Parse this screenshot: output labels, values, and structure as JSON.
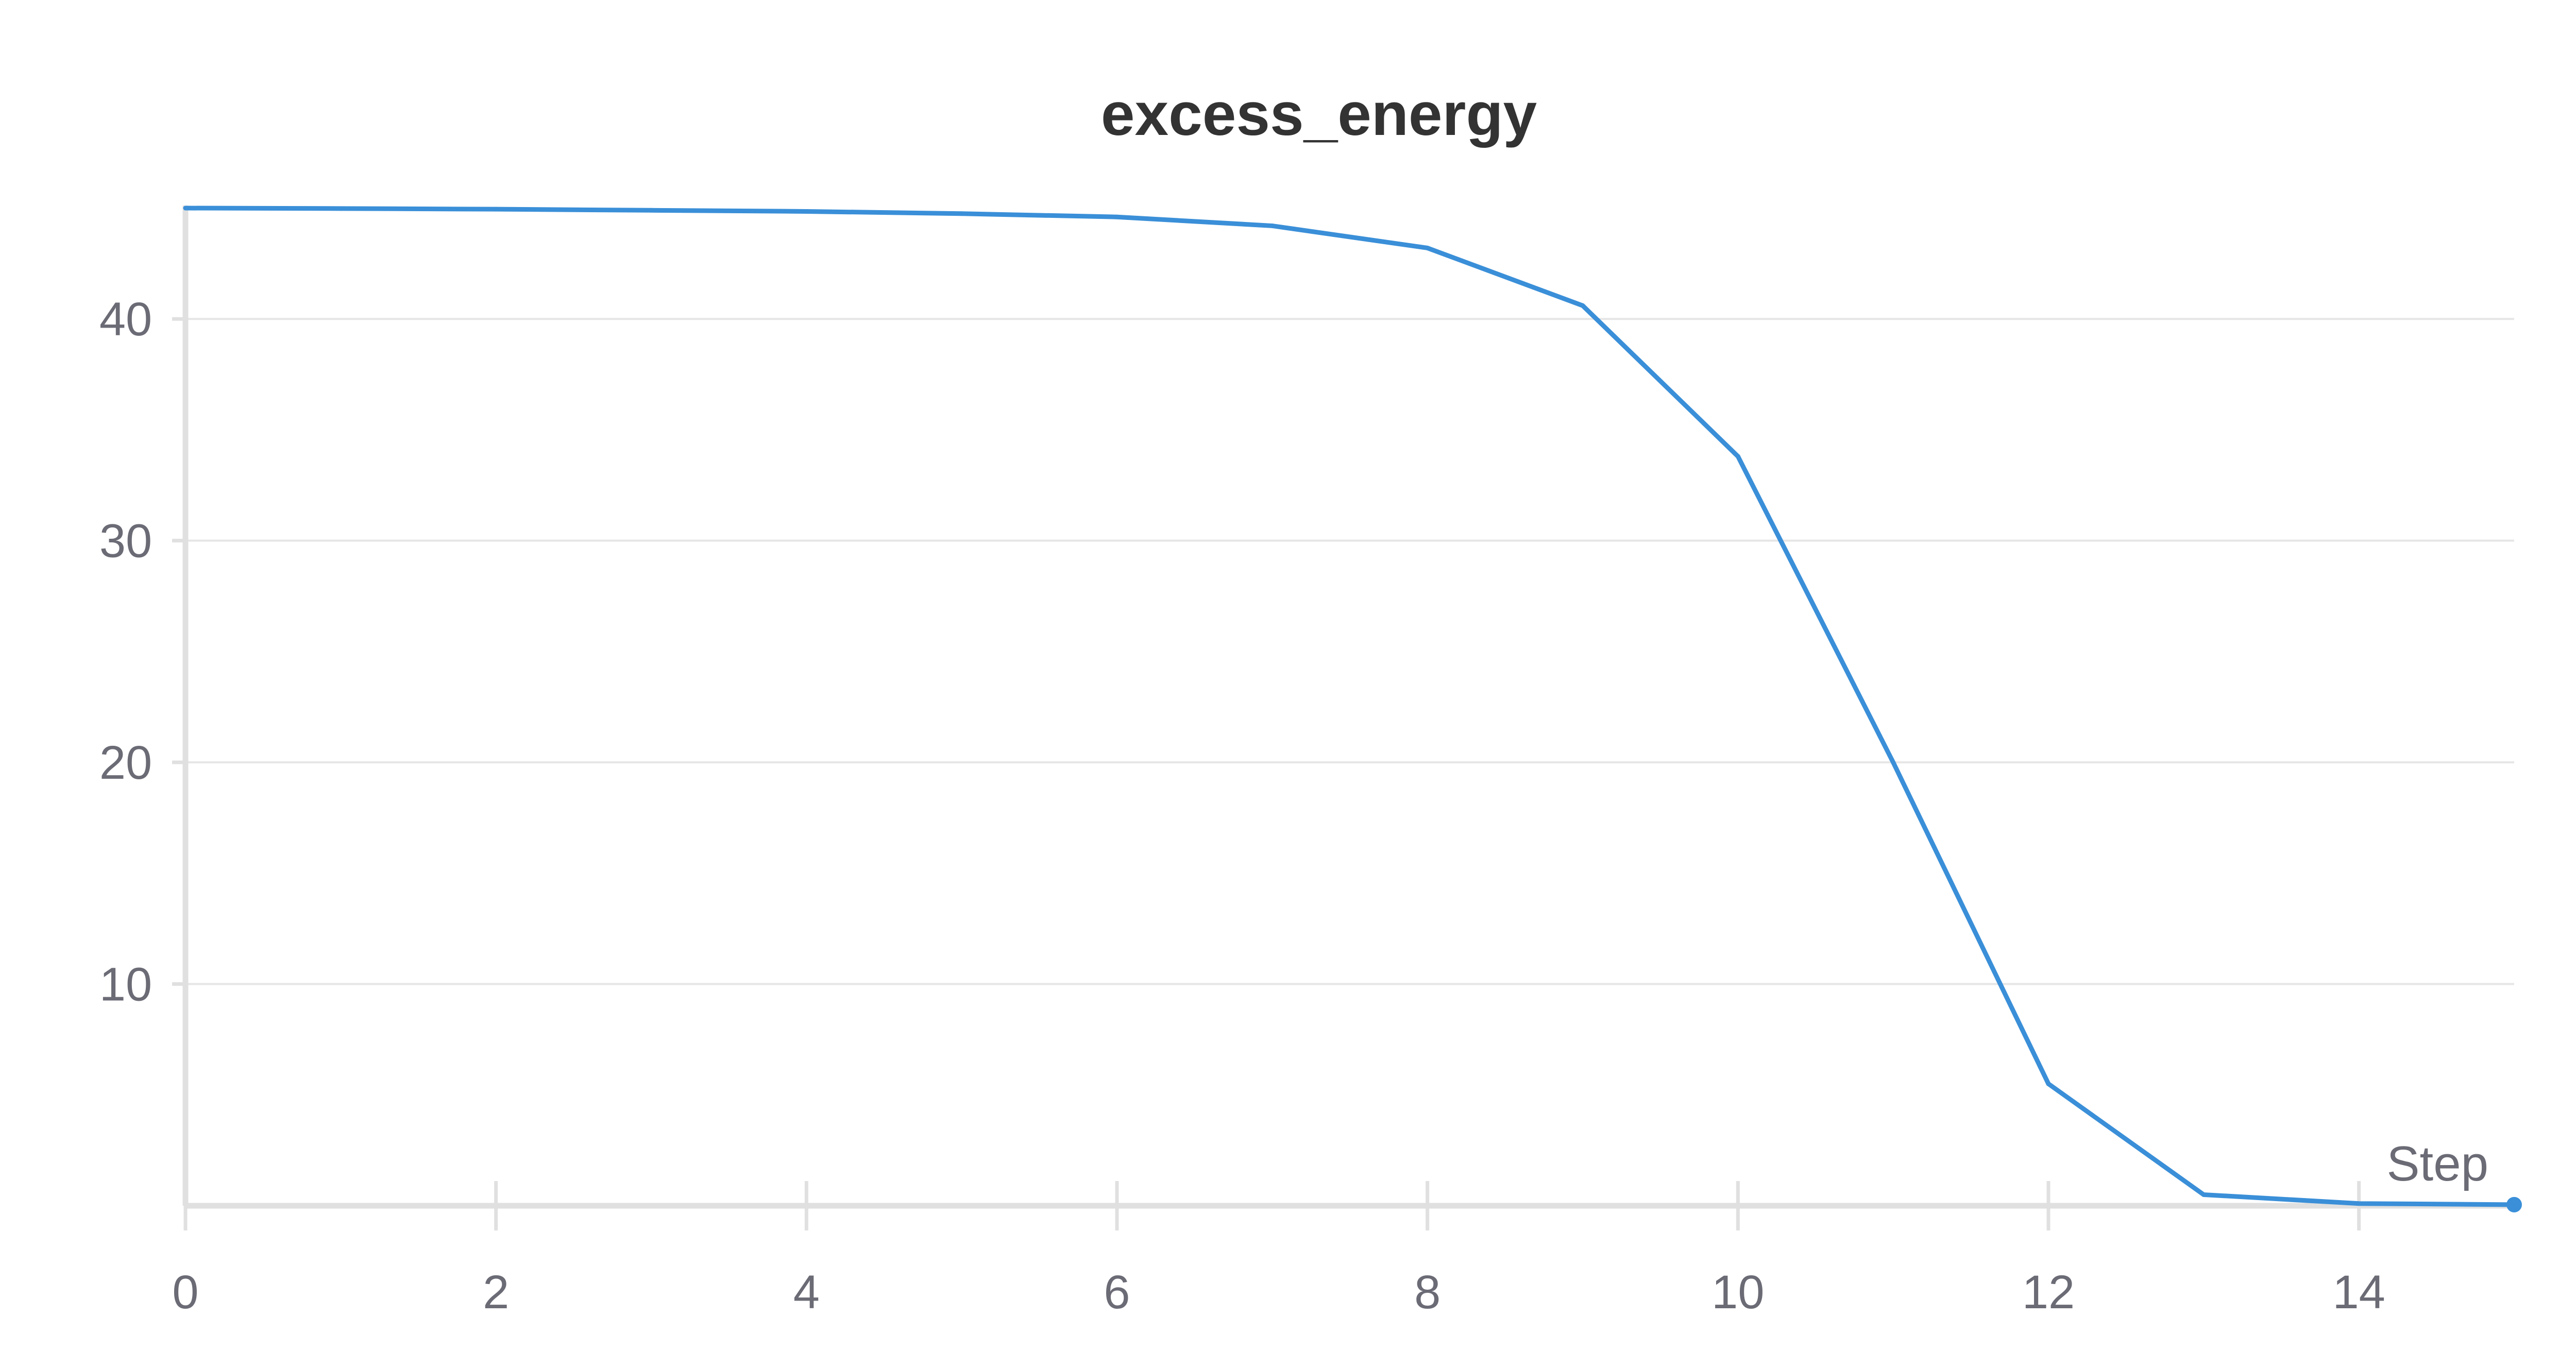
{
  "chart_data": {
    "type": "line",
    "title": "excess_energy",
    "xlabel": "Step",
    "ylabel": "",
    "xlim": [
      0,
      15
    ],
    "ylim": [
      0,
      45
    ],
    "x_ticks": [
      0,
      2,
      4,
      6,
      8,
      10,
      12,
      14
    ],
    "y_ticks": [
      10,
      20,
      30,
      40
    ],
    "grid": "horizontal",
    "legend": "none",
    "colors": {
      "line": "#3a8fd8",
      "grid": "#e6e6e6",
      "axis": "#e0e0e0",
      "title": "#333333",
      "tick_text": "#6b6b76"
    },
    "series": [
      {
        "x": [
          0,
          1,
          2,
          3,
          4,
          5,
          6,
          7,
          8,
          9,
          10,
          11,
          12,
          13,
          14,
          15
        ],
        "values": [
          45.0,
          44.98,
          44.95,
          44.9,
          44.85,
          44.75,
          44.6,
          44.2,
          43.2,
          40.6,
          33.8,
          20.0,
          5.5,
          0.5,
          0.1,
          0.05
        ]
      }
    ]
  }
}
